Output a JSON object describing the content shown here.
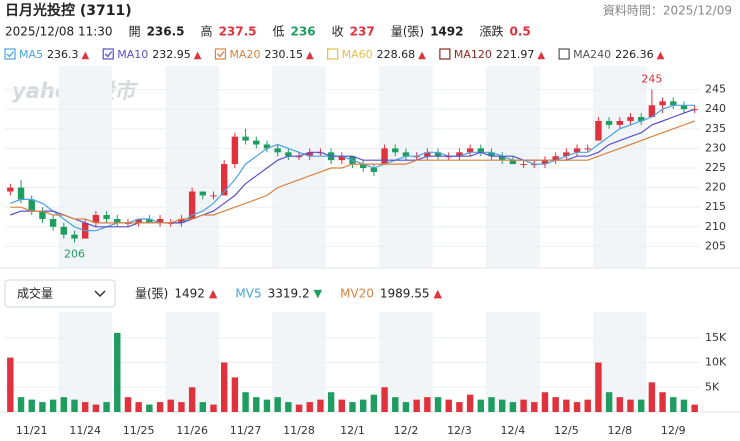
{
  "header": {
    "title": "日月光投控 (3711)",
    "data_time": "資料時間：2025/12/09",
    "watermark": "yahoo!股市"
  },
  "quote": {
    "time": "2025/12/08 11:30",
    "items": [
      {
        "label": "開",
        "value": 236.5,
        "color": "#222222"
      },
      {
        "label": "高",
        "value": 237.5,
        "color": "#e0323d"
      },
      {
        "label": "低",
        "value": 236,
        "color": "#1f9d61"
      },
      {
        "label": "收",
        "value": 237,
        "color": "#e0323d"
      },
      {
        "label": "量(張)",
        "value": 1492,
        "color": "#222222"
      },
      {
        "label": "漲跌",
        "value": 0.5,
        "color": "#e0323d"
      }
    ]
  },
  "chart_data": [
    {
      "type": "candlestick",
      "categories": [
        "11/21",
        "11/24",
        "11/25",
        "11/26",
        "11/27",
        "11/28",
        "12/1",
        "12/2",
        "12/3",
        "12/4",
        "12/5",
        "12/8",
        "12/9"
      ],
      "up_color": "#e0323d",
      "down_color": "#1f9d61",
      "ylim": [
        200,
        250
      ],
      "yticks": [
        205,
        210,
        215,
        220,
        225,
        230,
        235,
        240,
        245
      ],
      "grid": true,
      "annotations": {
        "high": 245,
        "low": 206
      },
      "open": [
        [
          219,
          220,
          217,
          214,
          212
        ],
        [
          210,
          208,
          207,
          211,
          213
        ],
        [
          212,
          211,
          211,
          212,
          211
        ],
        [
          211,
          211,
          212,
          219,
          218
        ],
        [
          218,
          226,
          233,
          232,
          231
        ],
        [
          230,
          229,
          228,
          228,
          229
        ],
        [
          229,
          227,
          228,
          226,
          225
        ],
        [
          226,
          230,
          229,
          228,
          228
        ],
        [
          229,
          228,
          228,
          229,
          230
        ],
        [
          229,
          228,
          227,
          226,
          226
        ],
        [
          226,
          227,
          228,
          229,
          230
        ],
        [
          232,
          237,
          236,
          237,
          238
        ],
        [
          238,
          241,
          242,
          241,
          240
        ]
      ],
      "high": [
        [
          221,
          222,
          218,
          215,
          213
        ],
        [
          211,
          209,
          212,
          214,
          214
        ],
        [
          213,
          212,
          212,
          213,
          213
        ],
        [
          212,
          213,
          220,
          219,
          219
        ],
        [
          227,
          234,
          235,
          233,
          232
        ],
        [
          231,
          230,
          229,
          230,
          230
        ],
        [
          230,
          229,
          228,
          227,
          226
        ],
        [
          231,
          231,
          230,
          229,
          230
        ],
        [
          230,
          229,
          230,
          231,
          231
        ],
        [
          230,
          229,
          228,
          227,
          227
        ],
        [
          228,
          229,
          230,
          231,
          231
        ],
        [
          238,
          238,
          238,
          239,
          239
        ],
        [
          245,
          243,
          243,
          242,
          241
        ]
      ],
      "low": [
        [
          218,
          216,
          213,
          211,
          209
        ],
        [
          207,
          206,
          207,
          210,
          211
        ],
        [
          210,
          210,
          210,
          211,
          210
        ],
        [
          210,
          210,
          212,
          217,
          217
        ],
        [
          218,
          225,
          231,
          230,
          229
        ],
        [
          228,
          227,
          227,
          227,
          228
        ],
        [
          226,
          226,
          225,
          224,
          223
        ],
        [
          226,
          228,
          227,
          227,
          227
        ],
        [
          227,
          227,
          227,
          228,
          228
        ],
        [
          227,
          226,
          226,
          225,
          225
        ],
        [
          225,
          226,
          227,
          228,
          229
        ],
        [
          232,
          235,
          235,
          236,
          236
        ],
        [
          238,
          239,
          240,
          239,
          239
        ]
      ],
      "close": [
        [
          220,
          217,
          214,
          212,
          210
        ],
        [
          208,
          207,
          211,
          213,
          212
        ],
        [
          211,
          211,
          212,
          211,
          212
        ],
        [
          211,
          212,
          219,
          218,
          218
        ],
        [
          226,
          233,
          232,
          231,
          230
        ],
        [
          229,
          228,
          228,
          229,
          229
        ],
        [
          227,
          228,
          226,
          225,
          224
        ],
        [
          230,
          229,
          228,
          228,
          229
        ],
        [
          228,
          228,
          229,
          230,
          229
        ],
        [
          228,
          227,
          226,
          226,
          226
        ],
        [
          227,
          228,
          229,
          230,
          230
        ],
        [
          237,
          236,
          237,
          238,
          237
        ],
        [
          241,
          242,
          241,
          240,
          240
        ]
      ],
      "series": [
        {
          "name": "MA5",
          "value": 236.3,
          "arrow": "▲",
          "arrow_color": "#e0323d",
          "color": "#4aa3df",
          "checked": true,
          "values": [
            [
              216,
              217,
              217,
              216,
              214
            ],
            [
              212,
              210,
              209,
              209,
              210
            ],
            [
              211,
              211,
              212,
              212,
              211
            ],
            [
              211,
              211,
              213,
              214,
              216
            ],
            [
              219,
              222,
              226,
              228,
              230
            ],
            [
              231,
              230,
              229,
              228,
              228
            ],
            [
              228,
              228,
              227,
              226,
              225
            ],
            [
              226,
              227,
              228,
              228,
              229
            ],
            [
              229,
              228,
              228,
              229,
              229
            ],
            [
              229,
              228,
              227,
              227,
              226
            ],
            [
              226,
              227,
              228,
              229,
              229
            ],
            [
              231,
              233,
              235,
              236,
              237
            ],
            [
              238,
              240,
              241,
              241,
              241
            ]
          ]
        },
        {
          "name": "MA10",
          "value": 232.95,
          "arrow": "▲",
          "arrow_color": "#e0323d",
          "color": "#5b4fc9",
          "checked": true,
          "values": [
            [
              213,
              214,
              214,
              214,
              214
            ],
            [
              213,
              212,
              211,
              210,
              210
            ],
            [
              210,
              210,
              211,
              211,
              211
            ],
            [
              211,
              211,
              212,
              213,
              214
            ],
            [
              216,
              218,
              221,
              223,
              225
            ],
            [
              227,
              228,
              228,
              229,
              229
            ],
            [
              228,
              228,
              228,
              227,
              227
            ],
            [
              227,
              227,
              227,
              227,
              228
            ],
            [
              228,
              228,
              228,
              228,
              229
            ],
            [
              228,
              228,
              228,
              227,
              227
            ],
            [
              227,
              227,
              227,
              228,
              228
            ],
            [
              229,
              231,
              232,
              233,
              234
            ],
            [
              236,
              237,
              238,
              239,
              240
            ]
          ]
        },
        {
          "name": "MA20",
          "value": 230.15,
          "arrow": "▲",
          "arrow_color": "#e0323d",
          "color": "#d9843f",
          "checked": true,
          "values": [
            [
              215,
              215,
              214,
              214,
              213
            ],
            [
              213,
              212,
              212,
              211,
              211
            ],
            [
              211,
              211,
              211,
              211,
              211
            ],
            [
              211,
              212,
              212,
              213,
              213
            ],
            [
              214,
              215,
              216,
              217,
              218
            ],
            [
              220,
              221,
              222,
              223,
              224
            ],
            [
              225,
              225,
              226,
              226,
              226
            ],
            [
              226,
              226,
              226,
              227,
              227
            ],
            [
              227,
              227,
              227,
              227,
              227
            ],
            [
              227,
              227,
              227,
              227,
              227
            ],
            [
              227,
              227,
              227,
              227,
              227
            ],
            [
              228,
              229,
              230,
              231,
              232
            ],
            [
              233,
              234,
              235,
              236,
              237
            ]
          ]
        },
        {
          "name": "MA60",
          "value": 228.68,
          "arrow": "▲",
          "arrow_color": "#e0323d",
          "color": "#e5bf45",
          "checked": false
        },
        {
          "name": "MA120",
          "value": 221.97,
          "arrow": "▲",
          "arrow_color": "#e0323d",
          "color": "#8e2a22",
          "checked": false
        },
        {
          "name": "MA240",
          "value": 226.36,
          "arrow": "▲",
          "arrow_color": "#e0323d",
          "color": "#555555",
          "checked": false
        }
      ]
    },
    {
      "type": "bar",
      "selector": "成交量",
      "legend": [
        {
          "name": "量(張)",
          "value": 1492,
          "arrow": "▲",
          "arrow_color": "#e0323d",
          "color": "#222222"
        },
        {
          "name": "MV5",
          "value": 3319.2,
          "arrow": "▼",
          "arrow_color": "#1f9d61",
          "color": "#4aa3df"
        },
        {
          "name": "MV20",
          "value": 1989.55,
          "arrow": "▲",
          "arrow_color": "#e0323d",
          "color": "#d9843f"
        }
      ],
      "ylim": [
        0,
        19000
      ],
      "yticks": [
        {
          "value": 5000,
          "label": "5K"
        },
        {
          "value": 10000,
          "label": "10K"
        },
        {
          "value": 15000,
          "label": "15K"
        }
      ],
      "grid": true,
      "values": [
        [
          11000,
          3000,
          2500,
          2000,
          2500
        ],
        [
          3000,
          2500,
          2000,
          1500,
          2000
        ],
        [
          16000,
          3000,
          2000,
          1500,
          2000
        ],
        [
          2500,
          2000,
          5000,
          2000,
          1500
        ],
        [
          10000,
          7000,
          4000,
          3000,
          2500
        ],
        [
          3000,
          2000,
          1500,
          2000,
          2500
        ],
        [
          4000,
          2500,
          2000,
          2500,
          3500
        ],
        [
          5000,
          3000,
          2000,
          2500,
          3000
        ],
        [
          3000,
          2500,
          2000,
          3500,
          2500
        ],
        [
          3000,
          2500,
          2000,
          2500,
          2000
        ],
        [
          4000,
          3000,
          2500,
          2000,
          2500
        ],
        [
          10000,
          4000,
          3000,
          2500,
          2500
        ],
        [
          6000,
          4000,
          3000,
          2500,
          1492
        ]
      ]
    }
  ]
}
